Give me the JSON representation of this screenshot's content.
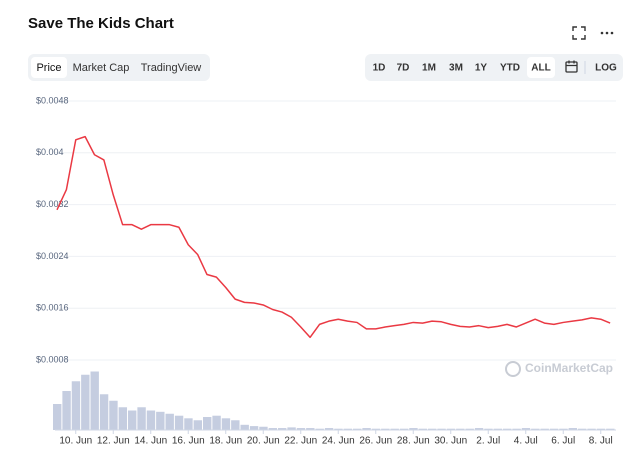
{
  "chart_data": {
    "type": "line",
    "title": "Save The Kids Chart",
    "tabs": [
      "Price",
      "Market Cap",
      "TradingView"
    ],
    "active_tab": 0,
    "ranges": [
      "1D",
      "7D",
      "1M",
      "3M",
      "1Y",
      "YTD",
      "ALL"
    ],
    "active_range": 6,
    "log_button": "LOG",
    "watermark": "CoinMarketCap",
    "color": "#ea3943",
    "grid": true,
    "ylim": [
      0.0008,
      0.0048
    ],
    "yticks": [
      {
        "value": 0.0008,
        "label": "$0.0008"
      },
      {
        "value": 0.0016,
        "label": "$0.0016"
      },
      {
        "value": 0.0024,
        "label": "$0.0024"
      },
      {
        "value": 0.0032,
        "label": "$0.0032"
      },
      {
        "value": 0.004,
        "label": "$0.004"
      },
      {
        "value": 0.0048,
        "label": "$0.0048"
      }
    ],
    "categories": [
      null,
      null,
      "10. Jun",
      null,
      null,
      null,
      "12. Jun",
      null,
      null,
      null,
      "14. Jun",
      null,
      null,
      null,
      "16. Jun",
      null,
      null,
      null,
      "18. Jun",
      null,
      null,
      null,
      "20. Jun",
      null,
      null,
      null,
      "22. Jun",
      null,
      null,
      null,
      "24. Jun",
      null,
      null,
      null,
      "26. Jun",
      null,
      null,
      null,
      "28. Jun",
      null,
      null,
      null,
      "30. Jun",
      null,
      null,
      null,
      "2. Jul",
      null,
      null,
      null,
      "4. Jul",
      null,
      null,
      null,
      "6. Jul",
      null,
      null,
      null,
      "8. Jul",
      null
    ],
    "values": [
      0.00312,
      0.00343,
      0.0042,
      0.00425,
      0.00397,
      0.00389,
      0.00335,
      0.00289,
      0.00289,
      0.00282,
      0.00289,
      0.00289,
      0.00289,
      0.00285,
      0.00258,
      0.00243,
      0.00212,
      0.00208,
      0.00192,
      0.00174,
      0.00169,
      0.00168,
      0.00165,
      0.00158,
      0.00154,
      0.00146,
      0.00131,
      0.00115,
      0.00135,
      0.0014,
      0.00143,
      0.0014,
      0.00138,
      0.00128,
      0.00128,
      0.00131,
      0.00133,
      0.00135,
      0.00138,
      0.00137,
      0.0014,
      0.00139,
      0.00135,
      0.00132,
      0.00131,
      0.00133,
      0.0013,
      0.00132,
      0.00135,
      0.00131,
      0.00137,
      0.00143,
      0.00137,
      0.00135,
      0.00138,
      0.0014,
      0.00142,
      0.00145,
      0.00143,
      0.00137
    ],
    "volume": {
      "color": "#c5cde0",
      "values": [
        40,
        60,
        75,
        85,
        90,
        55,
        45,
        35,
        30,
        35,
        30,
        28,
        25,
        22,
        18,
        15,
        20,
        22,
        18,
        15,
        8,
        6,
        5,
        3,
        3,
        4,
        3,
        3,
        2,
        3,
        2,
        2,
        2,
        3,
        2,
        2,
        2,
        2,
        3,
        2,
        2,
        2,
        2,
        2,
        2,
        3,
        2,
        2,
        2,
        2,
        3,
        2,
        2,
        2,
        2,
        3,
        2,
        2,
        2,
        2
      ]
    },
    "y2lim": [
      0,
      100
    ]
  }
}
